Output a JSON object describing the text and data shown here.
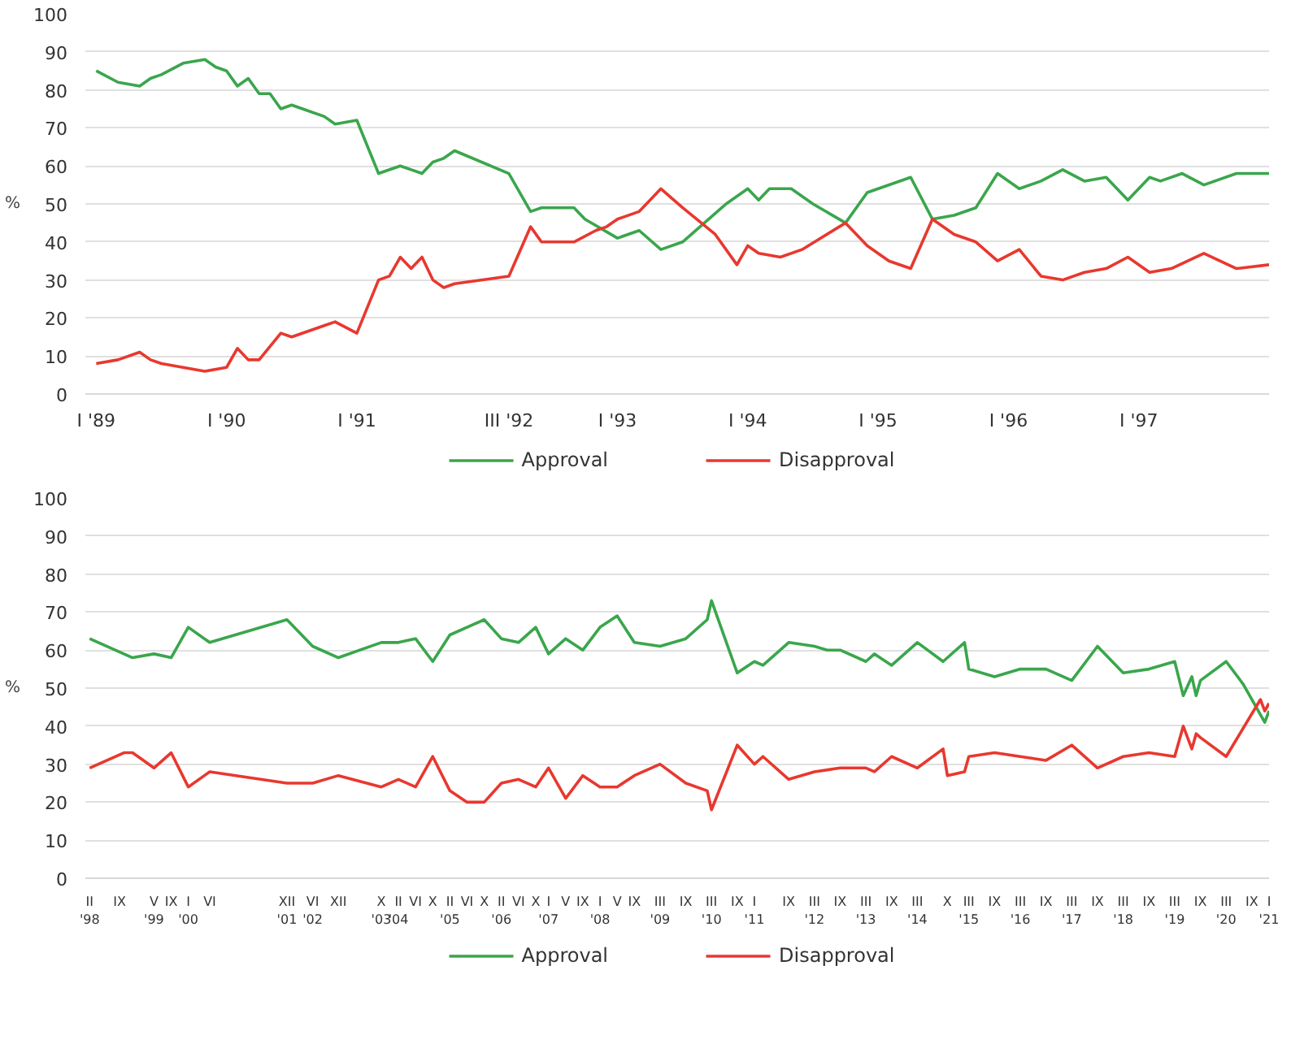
{
  "chart_data": [
    {
      "type": "line",
      "ylabel": "%",
      "grid": "y",
      "legend": "bottom",
      "ylim": [
        0,
        100
      ],
      "yticks": [
        0,
        10,
        20,
        30,
        40,
        50,
        60,
        70,
        80,
        90,
        100
      ],
      "xlim": [
        "1988-12",
        "1998-01"
      ],
      "xticks": [
        {
          "value": "1989-01",
          "label": "I '89"
        },
        {
          "value": "1990-01",
          "label": "I '90"
        },
        {
          "value": "1991-01",
          "label": "I '91"
        },
        {
          "value": "1992-03",
          "label": "III '92"
        },
        {
          "value": "1993-01",
          "label": "I '93"
        },
        {
          "value": "1994-01",
          "label": "I '94"
        },
        {
          "value": "1995-01",
          "label": "I '95"
        },
        {
          "value": "1996-01",
          "label": "I '96"
        },
        {
          "value": "1997-01",
          "label": "I '97"
        }
      ],
      "series": [
        {
          "name": "Approval",
          "color": "#3aa64c",
          "x": [
            "1989-01",
            "1989-03",
            "1989-05",
            "1989-06",
            "1989-07",
            "1989-09",
            "1989-11",
            "1989-12",
            "1990-01",
            "1990-02",
            "1990-03",
            "1990-04",
            "1990-05",
            "1990-06",
            "1990-07",
            "1990-08",
            "1990-10",
            "1990-11",
            "1991-01",
            "1991-03",
            "1991-05",
            "1991-07",
            "1991-08",
            "1991-09",
            "1991-10",
            "1992-03",
            "1992-05",
            "1992-06",
            "1992-09",
            "1992-10",
            "1993-01",
            "1993-03",
            "1993-05",
            "1993-07",
            "1993-09",
            "1993-11",
            "1994-01",
            "1994-02",
            "1994-03",
            "1994-05",
            "1994-07",
            "1994-10",
            "1994-12",
            "1995-04",
            "1995-06",
            "1995-08",
            "1995-10",
            "1995-12",
            "1996-02",
            "1996-04",
            "1996-06",
            "1996-08",
            "1996-10",
            "1996-12",
            "1997-02",
            "1997-03",
            "1997-05",
            "1997-07",
            "1997-10",
            "1998-01"
          ],
          "values": [
            85,
            82,
            81,
            83,
            84,
            87,
            88,
            86,
            85,
            81,
            83,
            79,
            79,
            75,
            76,
            75,
            73,
            71,
            72,
            58,
            60,
            58,
            61,
            62,
            64,
            58,
            48,
            49,
            49,
            46,
            41,
            43,
            38,
            40,
            45,
            50,
            54,
            51,
            54,
            54,
            50,
            45,
            53,
            57,
            46,
            47,
            49,
            58,
            54,
            56,
            59,
            56,
            57,
            51,
            57,
            56,
            58,
            55,
            58,
            58
          ]
        },
        {
          "name": "Disapproval",
          "color": "#e8382f",
          "x": [
            "1989-01",
            "1989-03",
            "1989-05",
            "1989-06",
            "1989-07",
            "1989-11",
            "1990-01",
            "1990-02",
            "1990-03",
            "1990-04",
            "1990-06",
            "1990-07",
            "1990-10",
            "1990-11",
            "1991-01",
            "1991-02",
            "1991-03",
            "1991-04",
            "1991-05",
            "1991-06",
            "1991-07",
            "1991-08",
            "1991-09",
            "1991-10",
            "1992-03",
            "1992-05",
            "1992-06",
            "1992-09",
            "1992-11",
            "1992-12",
            "1993-01",
            "1993-03",
            "1993-05",
            "1993-07",
            "1993-10",
            "1993-12",
            "1994-01",
            "1994-02",
            "1994-04",
            "1994-06",
            "1994-10",
            "1994-12",
            "1995-02",
            "1995-04",
            "1995-06",
            "1995-08",
            "1995-10",
            "1995-12",
            "1996-02",
            "1996-04",
            "1996-06",
            "1996-08",
            "1996-10",
            "1996-12",
            "1997-02",
            "1997-04",
            "1997-07",
            "1997-10",
            "1998-01"
          ],
          "values": [
            8,
            9,
            11,
            9,
            8,
            6,
            7,
            12,
            9,
            9,
            16,
            15,
            18,
            19,
            16,
            23,
            30,
            31,
            36,
            33,
            36,
            30,
            28,
            29,
            31,
            44,
            40,
            40,
            43,
            44,
            46,
            48,
            54,
            49,
            42,
            34,
            39,
            37,
            36,
            38,
            45,
            39,
            35,
            33,
            46,
            42,
            40,
            35,
            38,
            31,
            30,
            32,
            33,
            36,
            32,
            33,
            37,
            33,
            34
          ]
        }
      ]
    },
    {
      "type": "line",
      "ylabel": "%",
      "grid": "y",
      "legend": "bottom",
      "ylim": [
        0,
        100
      ],
      "yticks": [
        0,
        10,
        20,
        30,
        40,
        50,
        60,
        70,
        80,
        90,
        100
      ],
      "xlim": [
        "1998-01",
        "2021-01"
      ],
      "xticks": [
        {
          "value": "1998-02",
          "label": "II\n'98"
        },
        {
          "value": "1998-09",
          "label": "IX"
        },
        {
          "value": "1999-05",
          "label": "V\n'99"
        },
        {
          "value": "1999-09",
          "label": "IX"
        },
        {
          "value": "2000-01",
          "label": "I\n'00"
        },
        {
          "value": "2000-06",
          "label": "VI"
        },
        {
          "value": "2001-12",
          "label": "XII\n'01"
        },
        {
          "value": "2002-06",
          "label": "VI\n'02"
        },
        {
          "value": "2002-12",
          "label": "XII"
        },
        {
          "value": "2003-10",
          "label": "X\n'03"
        },
        {
          "value": "2004-02",
          "label": "II\n'04"
        },
        {
          "value": "2004-06",
          "label": "VI"
        },
        {
          "value": "2004-10",
          "label": "X"
        },
        {
          "value": "2005-02",
          "label": "II\n'05"
        },
        {
          "value": "2005-06",
          "label": "VI"
        },
        {
          "value": "2005-10",
          "label": "X"
        },
        {
          "value": "2006-02",
          "label": "II\n'06"
        },
        {
          "value": "2006-06",
          "label": "VI"
        },
        {
          "value": "2006-10",
          "label": "X"
        },
        {
          "value": "2007-01",
          "label": "I\n'07"
        },
        {
          "value": "2007-05",
          "label": "V"
        },
        {
          "value": "2007-09",
          "label": "IX"
        },
        {
          "value": "2008-01",
          "label": "I\n'08"
        },
        {
          "value": "2008-05",
          "label": "V"
        },
        {
          "value": "2008-09",
          "label": "IX"
        },
        {
          "value": "2009-03",
          "label": "III\n'09"
        },
        {
          "value": "2009-09",
          "label": "IX"
        },
        {
          "value": "2010-03",
          "label": "III\n'10"
        },
        {
          "value": "2010-09",
          "label": "IX"
        },
        {
          "value": "2011-01",
          "label": "I\n'11"
        },
        {
          "value": "2011-09",
          "label": "IX"
        },
        {
          "value": "2012-03",
          "label": "III\n'12"
        },
        {
          "value": "2012-09",
          "label": "IX"
        },
        {
          "value": "2013-03",
          "label": "III\n'13"
        },
        {
          "value": "2013-09",
          "label": "IX"
        },
        {
          "value": "2014-03",
          "label": "III\n'14"
        },
        {
          "value": "2014-10",
          "label": "X"
        },
        {
          "value": "2015-03",
          "label": "III\n'15"
        },
        {
          "value": "2015-09",
          "label": "IX"
        },
        {
          "value": "2016-03",
          "label": "III\n'16"
        },
        {
          "value": "2016-09",
          "label": "IX"
        },
        {
          "value": "2017-03",
          "label": "III\n'17"
        },
        {
          "value": "2017-09",
          "label": "IX"
        },
        {
          "value": "2018-03",
          "label": "III\n'18"
        },
        {
          "value": "2018-09",
          "label": "IX"
        },
        {
          "value": "2019-03",
          "label": "III\n'19"
        },
        {
          "value": "2019-09",
          "label": "IX"
        },
        {
          "value": "2020-03",
          "label": "III\n'20"
        },
        {
          "value": "2020-09",
          "label": "IX"
        },
        {
          "value": "2021-01",
          "label": "I\n'21"
        }
      ],
      "series": [
        {
          "name": "Approval",
          "color": "#3aa64c",
          "x": [
            "1998-02",
            "1998-12",
            "1999-05",
            "1999-09",
            "2000-01",
            "2000-06",
            "2001-12",
            "2002-06",
            "2002-12",
            "2003-10",
            "2004-02",
            "2004-06",
            "2004-10",
            "2005-02",
            "2005-06",
            "2005-10",
            "2006-02",
            "2006-06",
            "2006-10",
            "2007-01",
            "2007-05",
            "2007-09",
            "2008-01",
            "2008-05",
            "2008-09",
            "2009-03",
            "2009-09",
            "2010-02",
            "2010-03",
            "2010-09",
            "2011-01",
            "2011-03",
            "2011-09",
            "2012-03",
            "2012-06",
            "2012-09",
            "2013-03",
            "2013-05",
            "2013-09",
            "2014-03",
            "2014-09",
            "2015-02",
            "2015-03",
            "2015-09",
            "2016-03",
            "2016-09",
            "2017-03",
            "2017-09",
            "2018-03",
            "2018-09",
            "2019-03",
            "2019-05",
            "2019-07",
            "2019-08",
            "2019-09",
            "2020-03",
            "2020-07",
            "2020-12",
            "2021-01"
          ],
          "values": [
            63,
            58,
            59,
            58,
            66,
            62,
            68,
            61,
            58,
            62,
            62,
            63,
            57,
            64,
            66,
            68,
            63,
            62,
            66,
            59,
            63,
            60,
            66,
            69,
            62,
            61,
            63,
            68,
            73,
            54,
            57,
            56,
            62,
            61,
            60,
            60,
            57,
            59,
            56,
            62,
            57,
            62,
            55,
            53,
            55,
            55,
            52,
            61,
            54,
            55,
            57,
            48,
            53,
            48,
            52,
            57,
            51,
            41,
            44
          ]
        },
        {
          "name": "Disapproval",
          "color": "#e8382f",
          "x": [
            "1998-02",
            "1998-10",
            "1998-12",
            "1999-05",
            "1999-09",
            "2000-01",
            "2000-06",
            "2001-12",
            "2002-06",
            "2002-12",
            "2003-10",
            "2004-02",
            "2004-06",
            "2004-10",
            "2005-02",
            "2005-06",
            "2005-10",
            "2006-02",
            "2006-06",
            "2006-10",
            "2007-01",
            "2007-05",
            "2007-09",
            "2008-01",
            "2008-05",
            "2008-09",
            "2009-03",
            "2009-09",
            "2010-02",
            "2010-03",
            "2010-09",
            "2011-01",
            "2011-03",
            "2011-09",
            "2012-03",
            "2012-09",
            "2013-03",
            "2013-05",
            "2013-09",
            "2014-03",
            "2014-09",
            "2014-10",
            "2015-02",
            "2015-03",
            "2015-09",
            "2016-03",
            "2016-09",
            "2017-03",
            "2017-09",
            "2018-03",
            "2018-09",
            "2019-03",
            "2019-05",
            "2019-07",
            "2019-08",
            "2019-09",
            "2020-03",
            "2020-11",
            "2020-12",
            "2021-01"
          ],
          "values": [
            29,
            33,
            33,
            29,
            33,
            24,
            28,
            25,
            25,
            27,
            24,
            26,
            24,
            32,
            23,
            20,
            20,
            25,
            26,
            24,
            29,
            21,
            27,
            24,
            24,
            27,
            30,
            25,
            23,
            18,
            35,
            30,
            32,
            26,
            28,
            29,
            29,
            28,
            32,
            29,
            34,
            27,
            28,
            32,
            33,
            32,
            31,
            35,
            29,
            32,
            33,
            32,
            40,
            34,
            38,
            37,
            32,
            47,
            44,
            46
          ]
        }
      ]
    }
  ]
}
